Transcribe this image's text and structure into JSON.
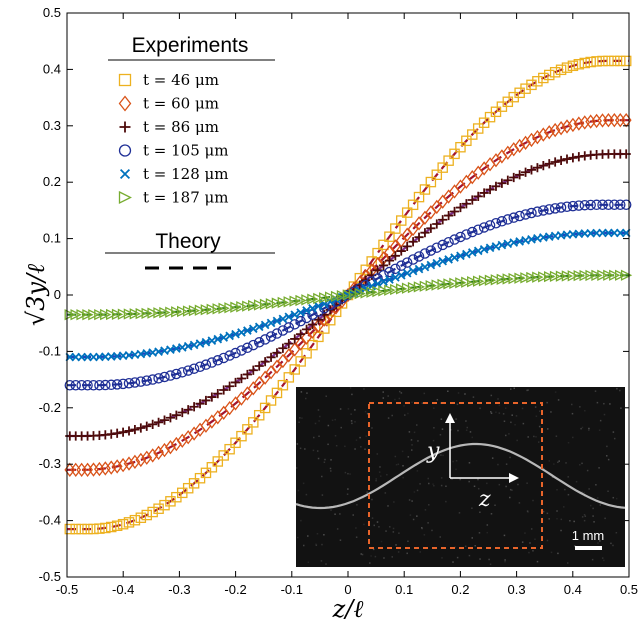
{
  "chart_data": {
    "type": "scatter",
    "xlabel": "z/ℓ",
    "ylabel": "√3y/ℓ",
    "xlim": [
      -0.5,
      0.5
    ],
    "ylim": [
      -0.5,
      0.5
    ],
    "x_ticks": [
      -0.5,
      -0.4,
      -0.3,
      -0.2,
      -0.1,
      0,
      0.1,
      0.2,
      0.3,
      0.4,
      0.5
    ],
    "y_ticks": [
      -0.5,
      -0.4,
      -0.3,
      -0.2,
      -0.1,
      0,
      0.1,
      0.2,
      0.3,
      0.4,
      0.5
    ],
    "x_tick_labels": [
      "-0.5",
      "-0.4",
      "-0.3",
      "-0.2",
      "-0.1",
      "0",
      "0.1",
      "0.2",
      "0.3",
      "0.4",
      "0.5"
    ],
    "y_tick_labels": [
      "-0.5",
      "-0.4",
      "-0.3",
      "-0.2",
      "-0.1",
      "0",
      "0.1",
      "0.2",
      "0.3",
      "0.4",
      "0.5"
    ],
    "grid": false,
    "legend": {
      "placement": "top-left",
      "experiments_title": "Experiments",
      "theory_title": "Theory"
    },
    "series": [
      {
        "name": "t = 46 μm",
        "marker": "square",
        "color": "#EDB120",
        "amplitude": 0.415,
        "flat_end": 0.46,
        "fit_color": "#A2142F"
      },
      {
        "name": "t = 60 μm",
        "marker": "diamond",
        "color": "#D95319",
        "amplitude": 0.31,
        "flat_end": 0.47,
        "fit_color": "#A2142F"
      },
      {
        "name": "t = 86 μm",
        "marker": "plus",
        "color": "#4D0A0A",
        "amplitude": 0.25,
        "flat_end": 0.47,
        "fit_color": "#7E2F8E"
      },
      {
        "name": "t = 105 μm",
        "marker": "circle",
        "color": "#1F2F96",
        "amplitude": 0.16,
        "flat_end": 0.45,
        "fit_color": "#1F2F96"
      },
      {
        "name": "t = 128 μm",
        "marker": "x",
        "color": "#0072BD",
        "amplitude": 0.11,
        "flat_end": 0.46,
        "fit_color": "#2040C0"
      },
      {
        "name": "t = 187 μm",
        "marker": "triangle-right",
        "color": "#77AC30",
        "amplitude": 0.035,
        "flat_end": 0.47,
        "fit_color": "#2A7A1A"
      }
    ],
    "inset": {
      "y_label": "y",
      "z_label": "z",
      "scale_bar": "1 mm",
      "box_color": "#E8642A"
    }
  }
}
